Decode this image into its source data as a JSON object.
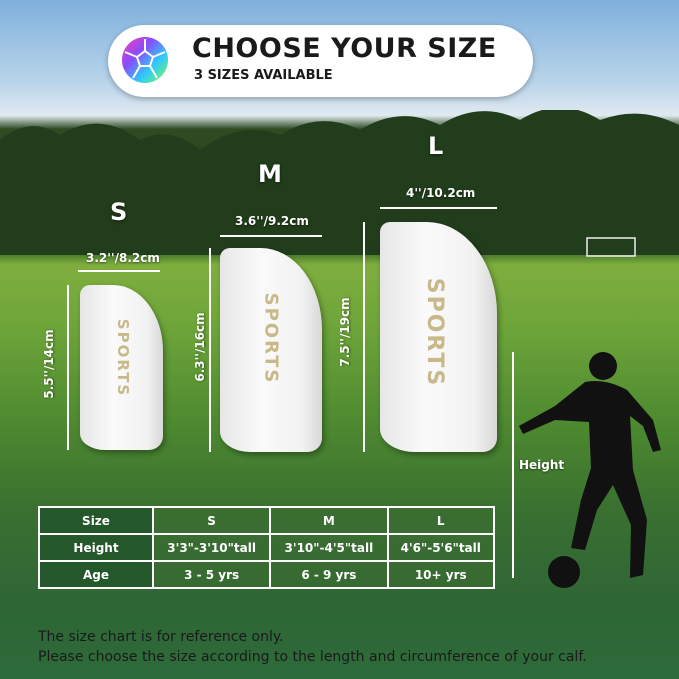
{
  "header": {
    "title": "CHOOSE YOUR SIZE",
    "subtitle": "3 SIZES AVAILABLE",
    "icon": "soccer-ball-icon"
  },
  "sizes": [
    {
      "label": "S",
      "width": "3.2''/8.2cm",
      "length": "5.5''/14cm",
      "logo": "SPORTS"
    },
    {
      "label": "M",
      "width": "3.6''/9.2cm",
      "length": "6.3''/16cm",
      "logo": "SPORTS"
    },
    {
      "label": "L",
      "width": "4''/10.2cm",
      "length": "7.5''/19cm",
      "logo": "SPORTS"
    }
  ],
  "player": {
    "height_label": "Height"
  },
  "table": {
    "rows": [
      {
        "header": "Size",
        "cells": [
          "S",
          "M",
          "L"
        ]
      },
      {
        "header": "Height",
        "cells": [
          "3'3\"-3'10\"tall",
          "3'10\"-4'5\"tall",
          "4'6\"-5'6\"tall"
        ]
      },
      {
        "header": "Age",
        "cells": [
          "3 - 5 yrs",
          "6 - 9 yrs",
          "10+ yrs"
        ]
      }
    ]
  },
  "footer": {
    "line1": "The size chart is for reference only.",
    "line2": "Please choose the size according to the length and circumference of your calf."
  }
}
